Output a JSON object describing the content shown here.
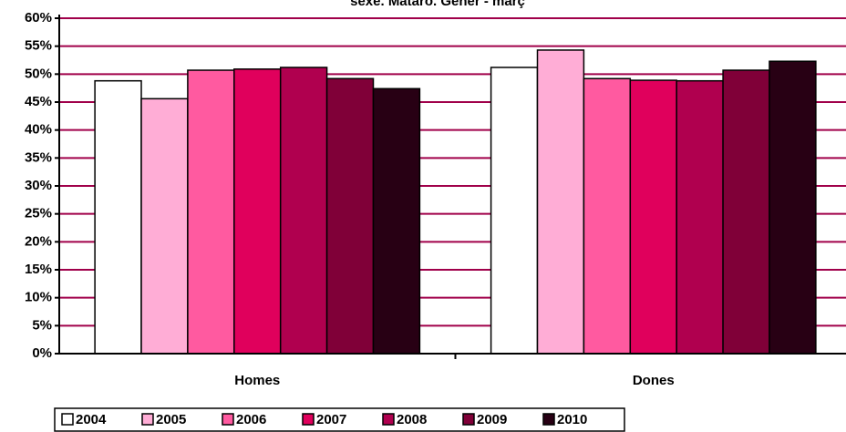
{
  "chart_data": {
    "type": "bar",
    "title": "sexe. Mataró. Gener - març",
    "categories": [
      "Homes",
      "Dones"
    ],
    "series": [
      {
        "name": "2004",
        "color": "#ffffff",
        "values": [
          48.8,
          51.2
        ]
      },
      {
        "name": "2005",
        "color": "#ffadd6",
        "values": [
          45.6,
          54.3
        ]
      },
      {
        "name": "2006",
        "color": "#ff5aa0",
        "values": [
          50.7,
          49.2
        ]
      },
      {
        "name": "2007",
        "color": "#e0005c",
        "values": [
          50.9,
          48.9
        ]
      },
      {
        "name": "2008",
        "color": "#b0004f",
        "values": [
          51.2,
          48.8
        ]
      },
      {
        "name": "2009",
        "color": "#800038",
        "values": [
          49.2,
          50.7
        ]
      },
      {
        "name": "2010",
        "color": "#280014",
        "values": [
          47.4,
          52.3
        ]
      }
    ],
    "ylim": [
      0,
      60
    ],
    "yticks": [
      {
        "value": 0,
        "label": "0%"
      },
      {
        "value": 5,
        "label": "5%"
      },
      {
        "value": 10,
        "label": "10%"
      },
      {
        "value": 15,
        "label": "15%"
      },
      {
        "value": 20,
        "label": "20%"
      },
      {
        "value": 25,
        "label": "25%"
      },
      {
        "value": 30,
        "label": "30%"
      },
      {
        "value": 35,
        "label": "35%"
      },
      {
        "value": 40,
        "label": "40%"
      },
      {
        "value": 45,
        "label": "45%"
      },
      {
        "value": 50,
        "label": "50%"
      },
      {
        "value": 55,
        "label": "55%"
      },
      {
        "value": 60,
        "label": "60%"
      }
    ],
    "grid": true,
    "grid_color": "#a0004a",
    "legend": "bottom"
  }
}
